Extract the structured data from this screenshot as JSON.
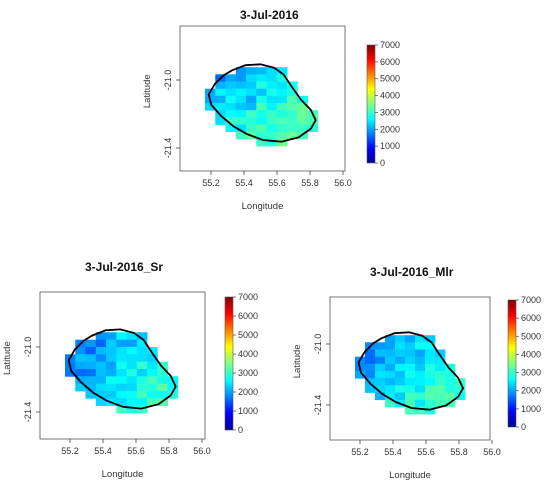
{
  "panels": [
    {
      "title": "3-Jul-2016",
      "xlabel": "Longitude",
      "ylabel": "Latitude"
    },
    {
      "title": "3-Jul-2016_Sr",
      "xlabel": "Longitude",
      "ylabel": "Latitude"
    },
    {
      "title": "3-Jul-2016_Mlr",
      "xlabel": "Longitude",
      "ylabel": "Latitude"
    }
  ],
  "axes": {
    "x_ticks": [
      "55.2",
      "55.4",
      "55.6",
      "55.8",
      "56.0"
    ],
    "y_ticks": [
      "-21.0",
      "-21.4"
    ]
  },
  "colorbar": {
    "ticks": [
      "0",
      "1000",
      "2000",
      "3000",
      "4000",
      "5000",
      "6000",
      "7000"
    ],
    "range": [
      0,
      7000
    ],
    "colors": [
      "#00008f",
      "#0000ff",
      "#0080ff",
      "#00ffff",
      "#80ff80",
      "#ffff00",
      "#ff8000",
      "#ff0000",
      "#800000"
    ]
  },
  "map_grid": {
    "lon_range": [
      55.2,
      56.0
    ],
    "lat_range": [
      -21.45,
      -20.85
    ],
    "region": "Réunion island"
  }
}
